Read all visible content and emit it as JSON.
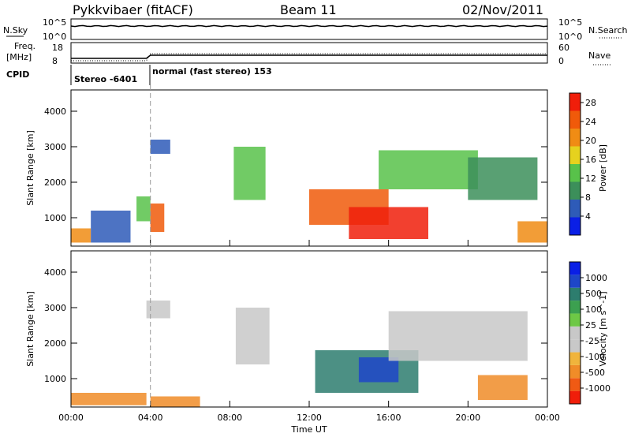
{
  "header": {
    "title": "Pykkvibaer (fitACF)",
    "beam": "Beam 11",
    "date": "02/Nov/2011"
  },
  "top_panels": {
    "nsky_label": "N.Sky",
    "nsky_ticks": [
      "10^5",
      "10^0"
    ],
    "nsearch_label": "N.Search",
    "nsearch_ticks": [
      "10^5",
      "10^0"
    ],
    "freq_label": "Freq.",
    "freq_unit": "[MHz]",
    "freq_ticks": [
      "18",
      "8"
    ],
    "nave_label": "Nave",
    "nave_ticks": [
      "60",
      "0"
    ],
    "cpid_label": "CPID",
    "cpid_segments": [
      {
        "text": "Stereo -6401",
        "start_hour": 0,
        "end_hour": 4
      },
      {
        "text": "normal (fast stereo) 153",
        "start_hour": 4,
        "end_hour": 24
      }
    ]
  },
  "colors": {
    "power_scale": [
      "#0a1fe6",
      "#2e5bb8",
      "#3c8f5a",
      "#58c24a",
      "#e6d21e",
      "#f08c14",
      "#f05a0a",
      "#f01e0a"
    ],
    "velocity_scale": [
      "#f01e0a",
      "#f05a14",
      "#f08c28",
      "#f0b43c",
      "#c8c8c8",
      "#c8c8c8",
      "#6ec846",
      "#3ca050",
      "#2d7d6e",
      "#1e46c8",
      "#0a1fe6"
    ],
    "grey": "#c8c8c8"
  },
  "chart_data": [
    {
      "type": "heatmap",
      "name": "power",
      "ylabel": "Slant Range [km]",
      "ylim": [
        200,
        4600
      ],
      "yticks": [
        "4000",
        "3000",
        "2000",
        "1000"
      ],
      "xlim_hours": [
        0,
        24
      ],
      "colorbar_label": "Power [dB]",
      "colorbar_ticks": [
        "28",
        "24",
        "20",
        "16",
        "12",
        "8",
        "4"
      ],
      "colorbar_range": [
        0,
        30
      ],
      "regions": [
        {
          "h0": 0.0,
          "h1": 1.0,
          "r0": 300,
          "r1": 700,
          "c": 5
        },
        {
          "h0": 1.0,
          "h1": 3.0,
          "r0": 300,
          "r1": 1200,
          "c": 1
        },
        {
          "h0": 3.3,
          "h1": 4.0,
          "r0": 900,
          "r1": 1600,
          "c": 3
        },
        {
          "h0": 4.0,
          "h1": 4.7,
          "r0": 600,
          "r1": 1400,
          "c": 6
        },
        {
          "h0": 4.0,
          "h1": 5.0,
          "r0": 2800,
          "r1": 3200,
          "c": 1
        },
        {
          "h0": 8.2,
          "h1": 9.8,
          "r0": 1500,
          "r1": 3000,
          "c": 3
        },
        {
          "h0": 12.0,
          "h1": 16.0,
          "r0": 800,
          "r1": 1800,
          "c": 6
        },
        {
          "h0": 14.0,
          "h1": 18.0,
          "r0": 400,
          "r1": 1300,
          "c": 7
        },
        {
          "h0": 15.5,
          "h1": 20.5,
          "r0": 1800,
          "r1": 2900,
          "c": 3
        },
        {
          "h0": 20.0,
          "h1": 23.5,
          "r0": 1500,
          "r1": 2700,
          "c": 2
        },
        {
          "h0": 22.5,
          "h1": 24.0,
          "r0": 300,
          "r1": 900,
          "c": 5
        }
      ]
    },
    {
      "type": "heatmap",
      "name": "velocity",
      "ylabel": "Slant Range [km]",
      "ylim": [
        200,
        4600
      ],
      "yticks": [
        "4000",
        "3000",
        "2000",
        "1000"
      ],
      "xlim_hours": [
        0,
        24
      ],
      "xlabel": "Time UT",
      "xticks": [
        "00:00",
        "04:00",
        "08:00",
        "12:00",
        "16:00",
        "20:00",
        "00:00"
      ],
      "colorbar_label": "Velocity [m s^-1]",
      "colorbar_ticks": [
        "1000",
        "500",
        "100",
        "25",
        "-25",
        "-100",
        "-500",
        "-1000"
      ],
      "regions": [
        {
          "h0": 0.0,
          "h1": 3.8,
          "r0": 250,
          "r1": 600,
          "c": 2
        },
        {
          "h0": 4.0,
          "h1": 6.5,
          "r0": 200,
          "r1": 500,
          "c": 2
        },
        {
          "h0": 3.8,
          "h1": 5.0,
          "r0": 2700,
          "r1": 3200,
          "c": 4
        },
        {
          "h0": 8.3,
          "h1": 10.0,
          "r0": 1400,
          "r1": 3000,
          "c": 4
        },
        {
          "h0": 12.3,
          "h1": 17.5,
          "r0": 600,
          "r1": 1800,
          "c": 8
        },
        {
          "h0": 14.5,
          "h1": 16.5,
          "r0": 900,
          "r1": 1600,
          "c": 9
        },
        {
          "h0": 16.0,
          "h1": 23.0,
          "r0": 1500,
          "r1": 2900,
          "c": 4
        },
        {
          "h0": 20.5,
          "h1": 23.0,
          "r0": 400,
          "r1": 1100,
          "c": 2
        }
      ]
    }
  ]
}
